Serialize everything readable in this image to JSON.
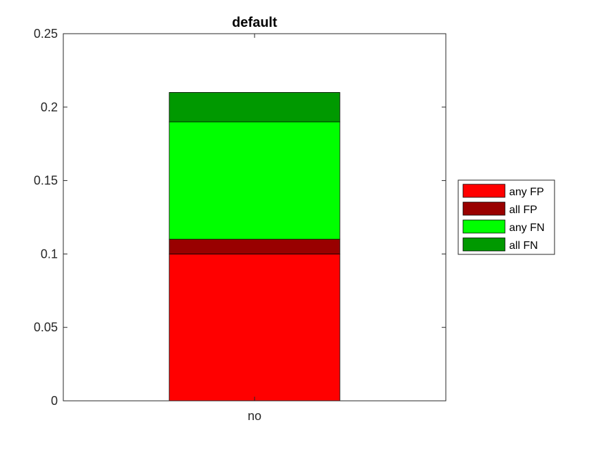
{
  "chart_data": {
    "type": "bar",
    "stacked": true,
    "title": "default",
    "xlabel": "",
    "ylabel": "",
    "categories": [
      "no"
    ],
    "ylim": [
      0,
      0.25
    ],
    "yticks": [
      "0",
      "0.05",
      "0.1",
      "0.15",
      "0.2",
      "0.25"
    ],
    "ytick_values": [
      0,
      0.05,
      0.1,
      0.15,
      0.2,
      0.25
    ],
    "series": [
      {
        "name": "any FP",
        "values": [
          0.1
        ],
        "color": "#ff0000"
      },
      {
        "name": "all FP",
        "values": [
          0.01
        ],
        "color": "#990000"
      },
      {
        "name": "any FN",
        "values": [
          0.08
        ],
        "color": "#00ff00"
      },
      {
        "name": "all FN",
        "values": [
          0.02
        ],
        "color": "#009900"
      }
    ],
    "grid": false,
    "legend_position": "outside-right"
  }
}
